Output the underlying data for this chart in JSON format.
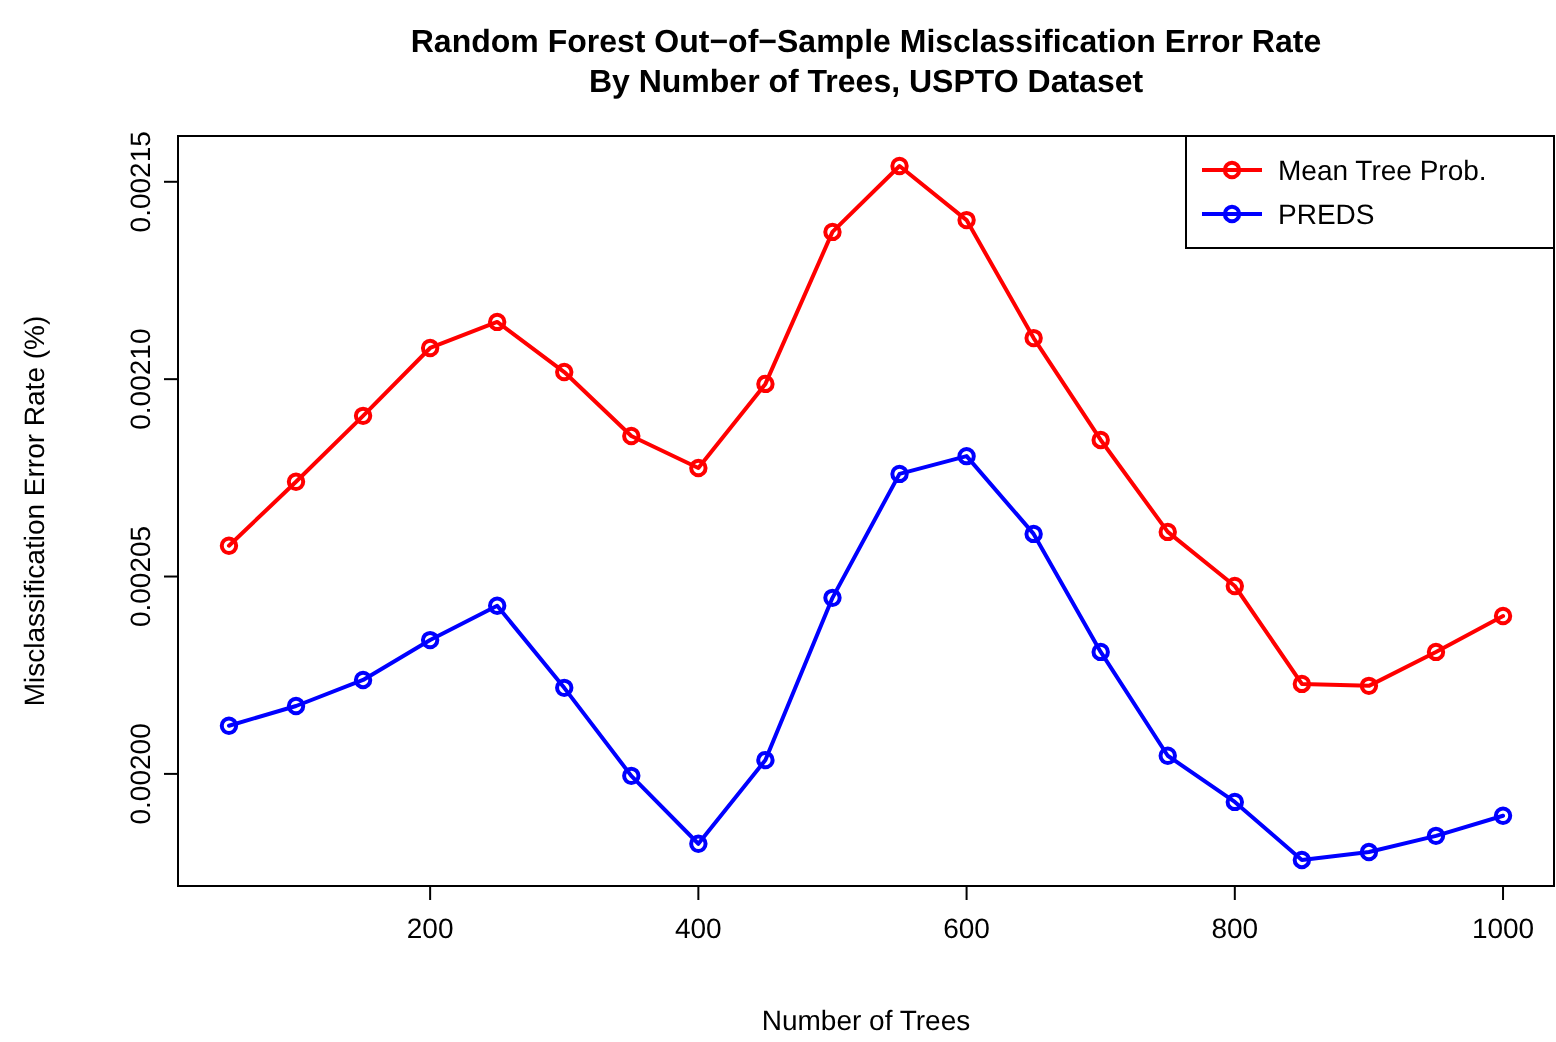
{
  "chart_data": {
    "type": "line",
    "title": "Random Forest Out−of−Sample Misclassification Error Rate\nBy Number of Trees, USPTO Dataset",
    "xlabel": "Number of Trees",
    "ylabel": "Misclassification Error Rate (%)",
    "x": [
      50,
      100,
      150,
      200,
      250,
      300,
      350,
      400,
      450,
      500,
      550,
      600,
      650,
      700,
      750,
      800,
      850,
      900,
      950,
      1000
    ],
    "series": [
      {
        "name": "Mean Tree Prob.",
        "color": "#ff0000",
        "values": [
          0.0020578,
          0.002074,
          0.0020907,
          0.0021079,
          0.0021145,
          0.0021018,
          0.0020856,
          0.0020775,
          0.0020988,
          0.0021373,
          0.002154,
          0.0021403,
          0.0021104,
          0.0020846,
          0.0020613,
          0.0020476,
          0.0020228,
          0.0020223,
          0.0020309,
          0.00204
        ]
      },
      {
        "name": "PREDS",
        "color": "#0000ff",
        "values": [
          0.0020122,
          0.0020172,
          0.0020238,
          0.0020339,
          0.0020426,
          0.0020218,
          0.0019995,
          0.0019823,
          0.0020035,
          0.0020446,
          0.002076,
          0.0020805,
          0.0020608,
          0.0020309,
          0.0020046,
          0.0019929,
          0.0019782,
          0.0019802,
          0.0019843,
          0.0019894
        ]
      }
    ],
    "xlim": [
      12,
      1038
    ],
    "xticks": [
      200,
      400,
      600,
      800,
      1000
    ],
    "ylim": [
      0.0019716,
      0.0021616
    ],
    "yticks": [
      {
        "value": 0.002,
        "label": "0.00200"
      },
      {
        "value": 0.00205,
        "label": "0.00205"
      },
      {
        "value": 0.0021,
        "label": "0.00210"
      },
      {
        "value": 0.00215,
        "label": "0.00215"
      }
    ],
    "legend": "top right",
    "marker": "circle",
    "line_style": "solid",
    "grid": false
  }
}
